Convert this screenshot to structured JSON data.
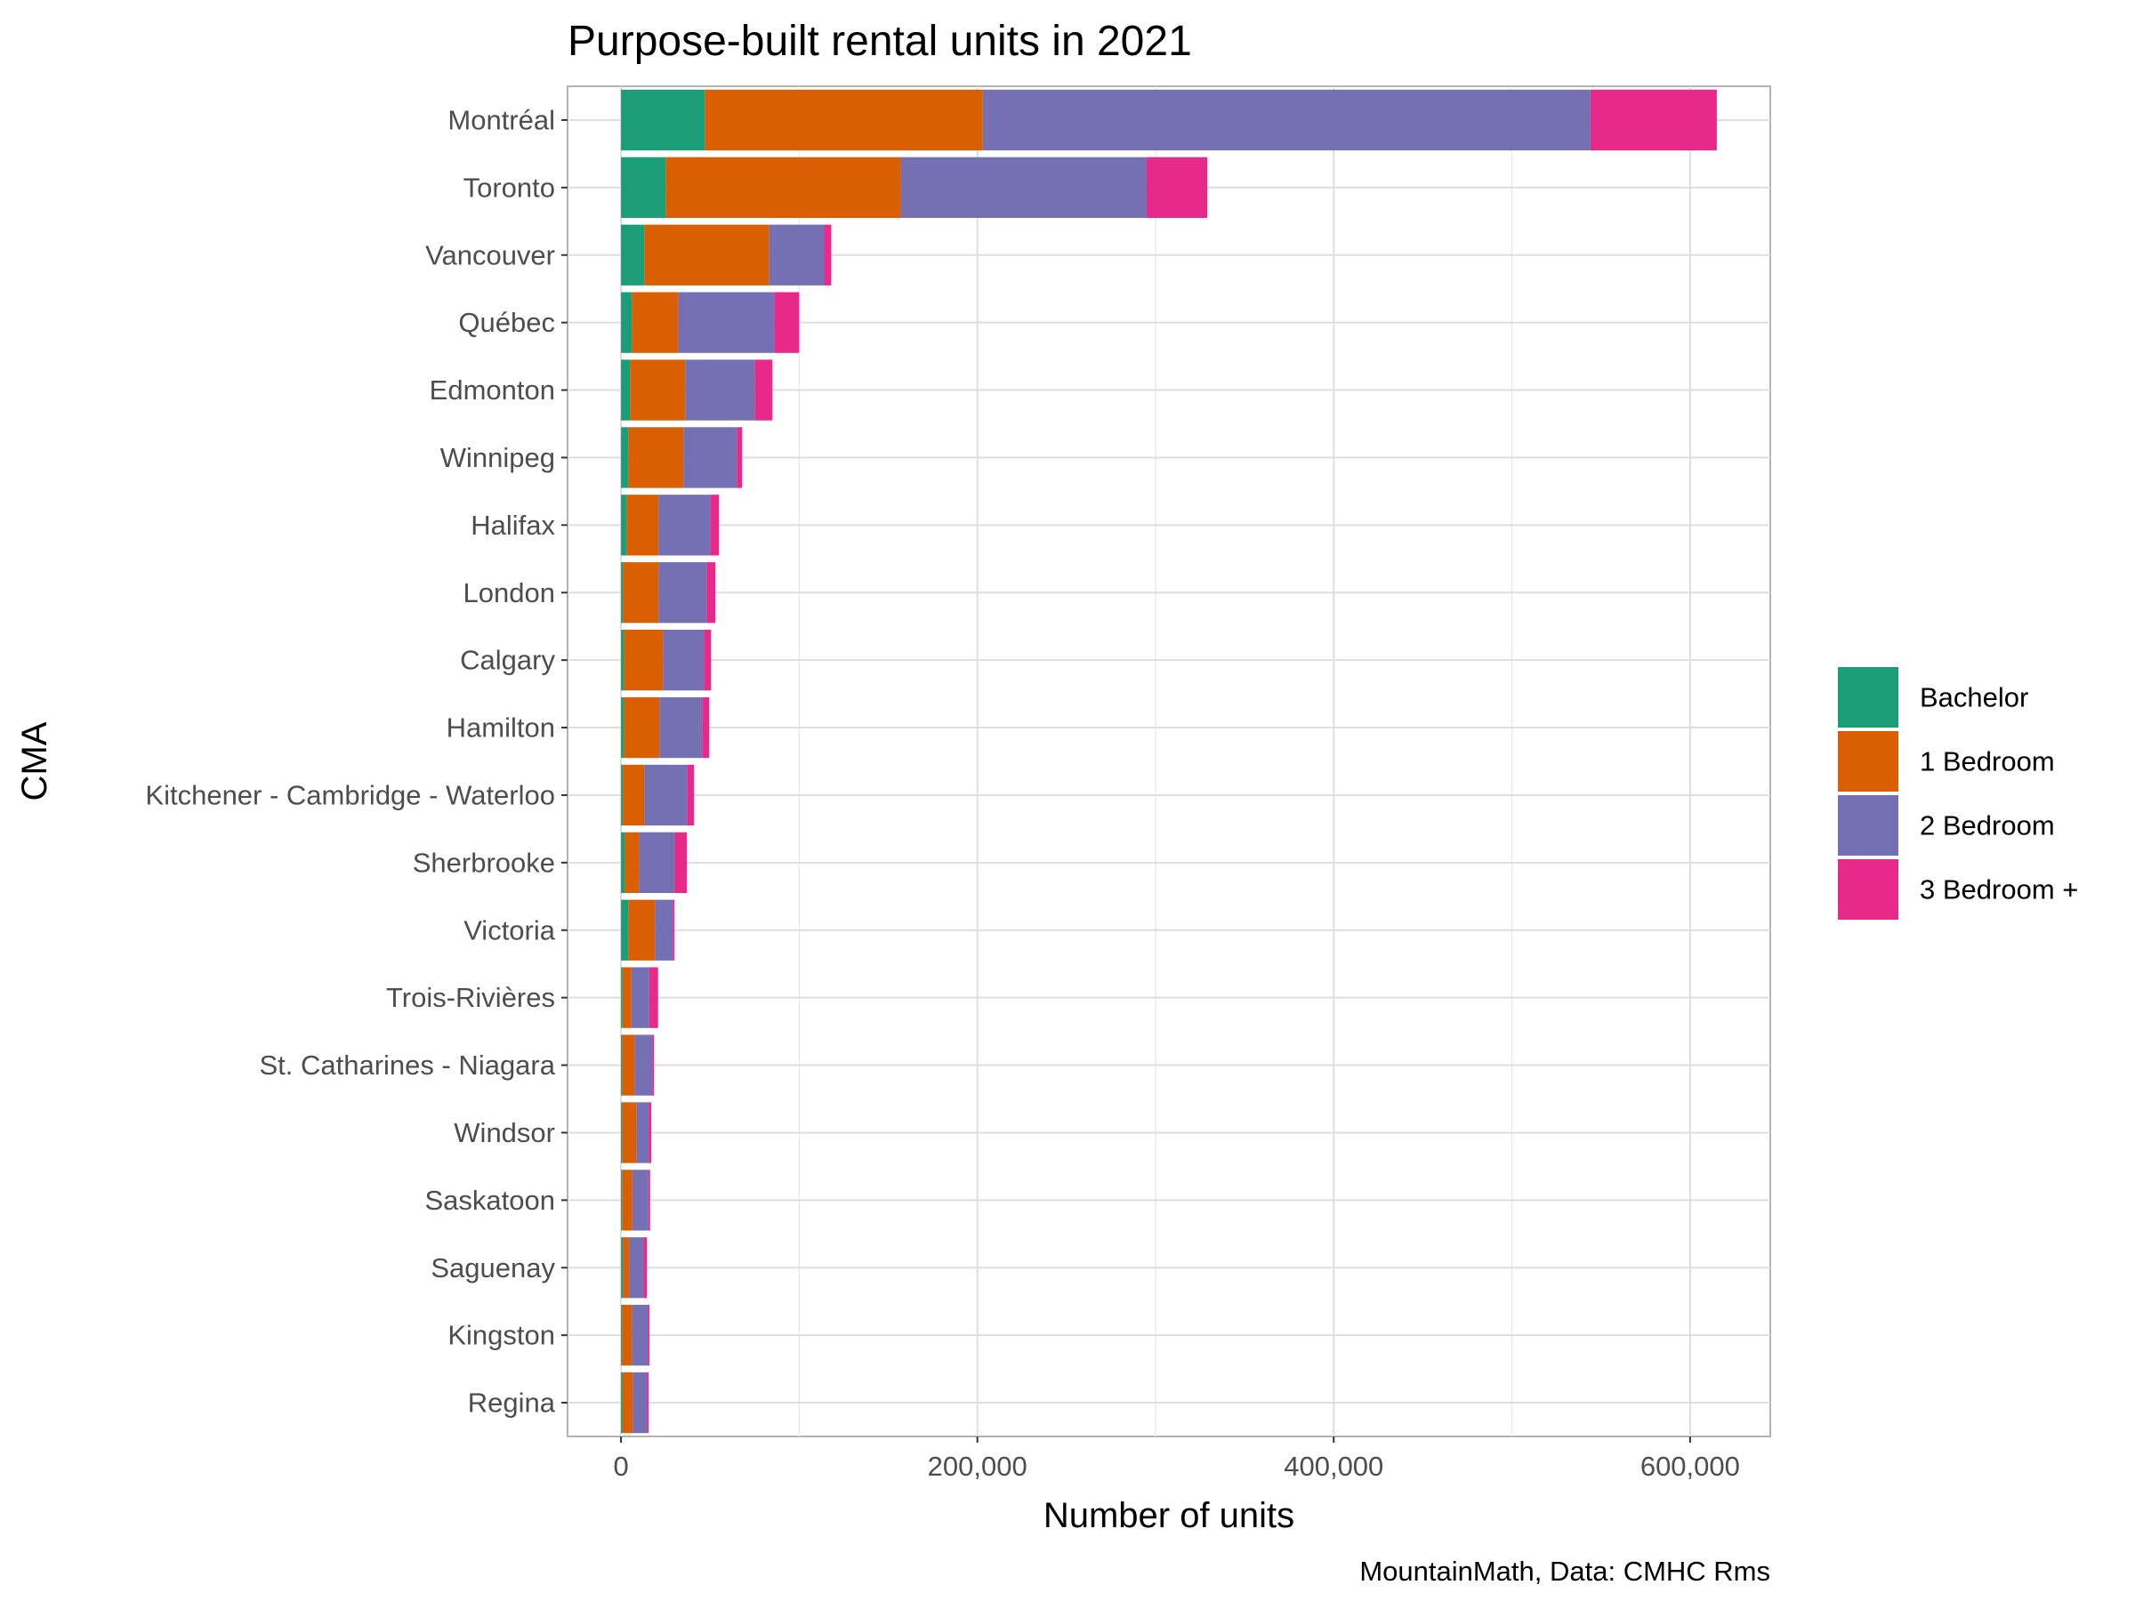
{
  "chart_data": {
    "type": "bar",
    "orientation": "horizontal",
    "stacked": true,
    "title": "Purpose-built rental units in 2021",
    "xlabel": "Number of units",
    "ylabel": "CMA",
    "caption": "MountainMath, Data: CMHC Rms",
    "xlim": [
      -30000,
      645000
    ],
    "xticks": [
      0,
      200000,
      400000,
      600000
    ],
    "xtick_labels": [
      "0",
      "200,000",
      "400,000",
      "600,000"
    ],
    "grid": true,
    "legend_position": "right",
    "categories": [
      "Montréal",
      "Toronto",
      "Vancouver",
      "Québec",
      "Edmonton",
      "Winnipeg",
      "Halifax",
      "London",
      "Calgary",
      "Hamilton",
      "Kitchener - Cambridge - Waterloo",
      "Sherbrooke",
      "Victoria",
      "Trois-Rivières",
      "St. Catharines - Niagara",
      "Windsor",
      "Saskatoon",
      "Saguenay",
      "Kingston",
      "Regina"
    ],
    "series": [
      {
        "name": "Bachelor",
        "color": "#1b9e77",
        "values": [
          47000,
          25000,
          13000,
          6000,
          5000,
          4000,
          3000,
          1000,
          1500,
          1500,
          1000,
          2000,
          4000,
          800,
          500,
          500,
          600,
          1000,
          500,
          700
        ]
      },
      {
        "name": "1 Bedroom",
        "color": "#d95f02",
        "values": [
          156000,
          132000,
          70000,
          26000,
          31000,
          31000,
          18000,
          20000,
          22000,
          20000,
          12000,
          8000,
          15000,
          5000,
          7000,
          8000,
          5700,
          3500,
          5500,
          5800
        ]
      },
      {
        "name": "2 Bedroom",
        "color": "#7570b3",
        "values": [
          341000,
          138000,
          31000,
          54000,
          39000,
          30000,
          29000,
          27000,
          23000,
          24000,
          24000,
          20000,
          10000,
          10000,
          10000,
          7000,
          9000,
          8000,
          9000,
          8000
        ]
      },
      {
        "name": "3 Bedroom +",
        "color": "#e7298a",
        "values": [
          71000,
          34000,
          4000,
          14000,
          10000,
          3000,
          5000,
          5000,
          4000,
          4000,
          4000,
          7000,
          1000,
          5000,
          1000,
          1500,
          1000,
          2000,
          1000,
          1000
        ]
      }
    ]
  }
}
